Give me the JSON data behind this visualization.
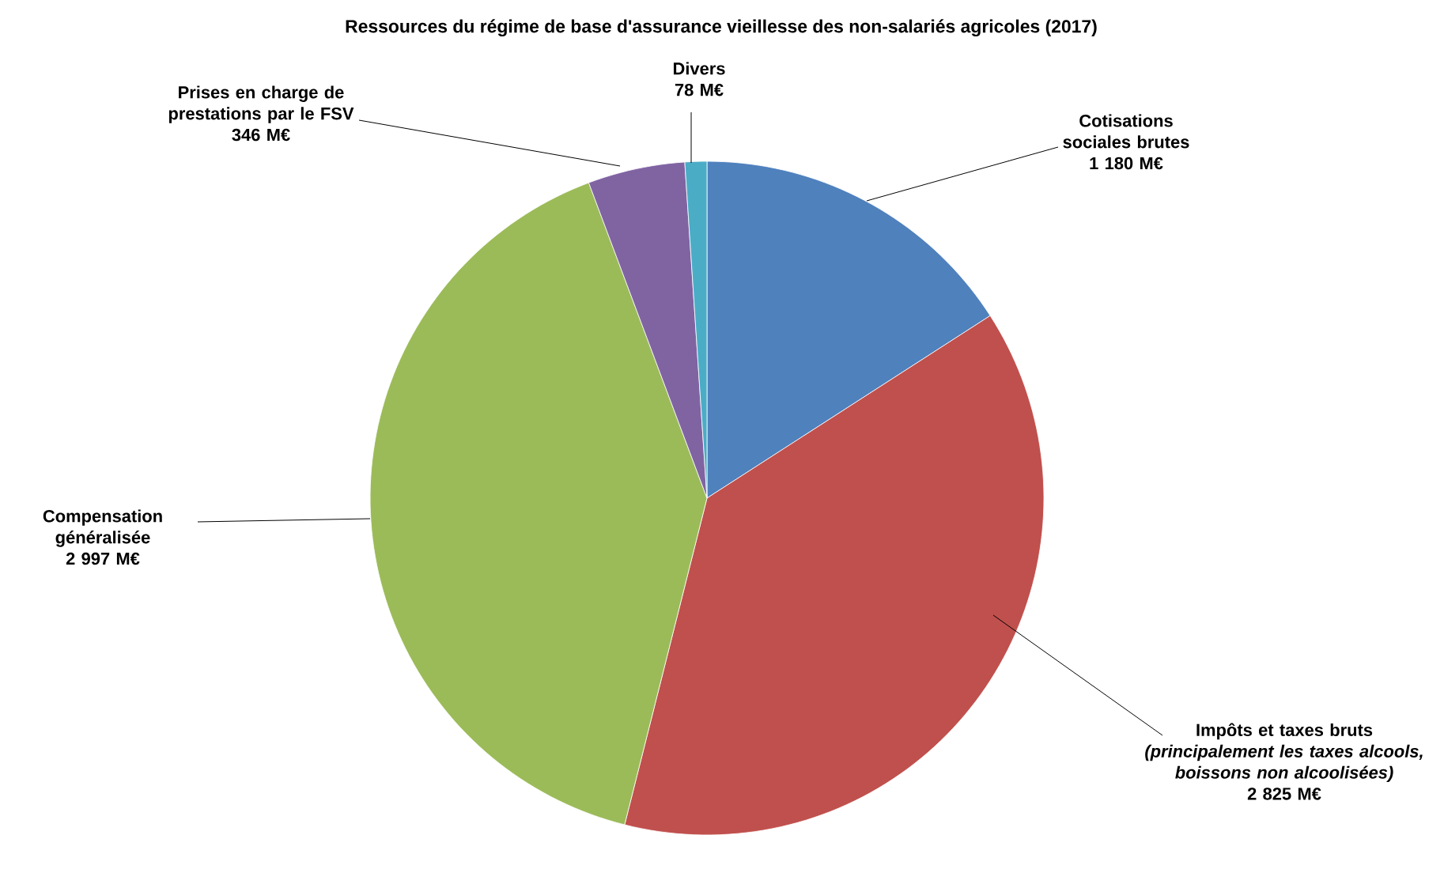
{
  "chart_data": {
    "type": "pie",
    "title": "Ressources du régime de base d'assurance vieillesse des non-salariés agricoles (2017)",
    "categories": [
      "Cotisations sociales brutes",
      "Impôts et taxes bruts *(principalement les taxes alcools, boissons non alcoolisées)*",
      "Compensation généralisée",
      "Prises en charge de prestations par le FSV",
      "Divers"
    ],
    "values": [
      1180,
      2825,
      2997,
      346,
      78
    ],
    "value_labels": [
      "1 180 M€",
      "2 825 M€",
      "2 997 M€",
      "346 M€",
      "78 M€"
    ],
    "colors": [
      "#4f81bd",
      "#c0504d",
      "#9bbb59",
      "#8064a2",
      "#4bacc6"
    ]
  }
}
